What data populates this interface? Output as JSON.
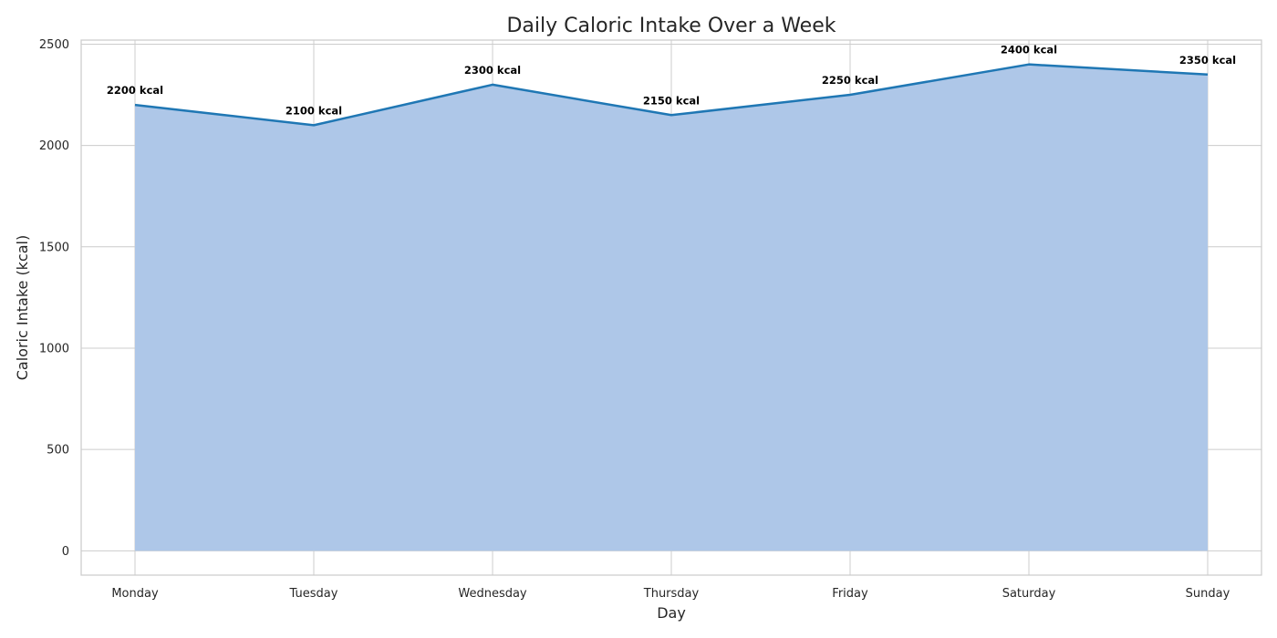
{
  "chart_data": {
    "type": "area",
    "title": "Daily Caloric Intake Over a Week",
    "xlabel": "Day",
    "ylabel": "Caloric Intake (kcal)",
    "categories": [
      "Monday",
      "Tuesday",
      "Wednesday",
      "Thursday",
      "Friday",
      "Saturday",
      "Sunday"
    ],
    "values": [
      2200,
      2100,
      2300,
      2150,
      2250,
      2400,
      2350
    ],
    "data_labels": [
      "2200 kcal",
      "2100 kcal",
      "2300 kcal",
      "2150 kcal",
      "2250 kcal",
      "2400 kcal",
      "2350 kcal"
    ],
    "y_ticks": [
      0,
      500,
      1000,
      1500,
      2000,
      2500
    ],
    "ylim": [
      -120,
      2520
    ],
    "grid": true,
    "colors": {
      "line": "#1f77b4",
      "fill": "#aec7e8",
      "grid": "#cccccc",
      "spine": "#cccccc"
    }
  }
}
